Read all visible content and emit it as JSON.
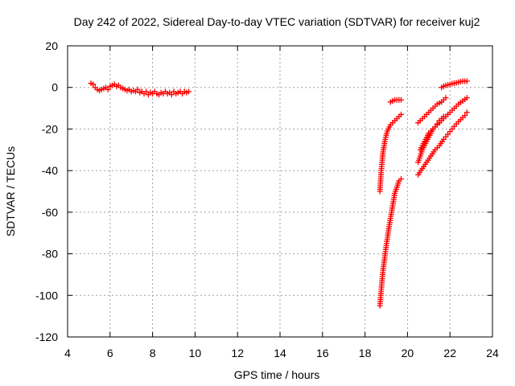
{
  "chart_data": {
    "type": "scatter",
    "title": "Day 242 of 2022, Sidereal Day-to-day VTEC variation (SDTVAR) for receiver kuj2",
    "xlabel": "GPS time / hours",
    "ylabel": "SDTVAR / TECUs",
    "xlim": [
      4,
      24
    ],
    "ylim": [
      -120,
      20
    ],
    "xticks": [
      "4",
      "6",
      "8",
      "10",
      "12",
      "14",
      "16",
      "18",
      "20",
      "22",
      "24"
    ],
    "yticks": [
      "20",
      "0",
      "-20",
      "-40",
      "-60",
      "-80",
      "-100",
      "-120"
    ],
    "grid": true,
    "marker": "plus",
    "color": "#ff0000",
    "series": [
      {
        "values": [
          [
            5.1,
            2
          ],
          [
            5.2,
            1.5
          ],
          [
            5.3,
            0
          ],
          [
            5.4,
            -1
          ],
          [
            5.5,
            -1.5
          ],
          [
            5.6,
            -1
          ],
          [
            5.7,
            -0.5
          ],
          [
            5.8,
            0
          ],
          [
            5.9,
            -1
          ],
          [
            6.0,
            0.5
          ],
          [
            6.1,
            1
          ],
          [
            6.2,
            1.5
          ],
          [
            6.3,
            0.5
          ],
          [
            6.4,
            1
          ],
          [
            6.5,
            0
          ],
          [
            6.6,
            -0.5
          ],
          [
            6.7,
            -1
          ],
          [
            6.8,
            -1.5
          ],
          [
            6.9,
            -1
          ],
          [
            7.0,
            -2
          ],
          [
            7.1,
            -1.5
          ],
          [
            7.2,
            -2
          ],
          [
            7.3,
            -1
          ],
          [
            7.4,
            -2.5
          ],
          [
            7.5,
            -2
          ],
          [
            7.6,
            -3
          ],
          [
            7.7,
            -2
          ],
          [
            7.8,
            -3.5
          ],
          [
            7.9,
            -2.5
          ],
          [
            8.0,
            -3
          ],
          [
            8.1,
            -2
          ],
          [
            8.2,
            -3
          ],
          [
            8.3,
            -3.5
          ],
          [
            8.4,
            -2.5
          ],
          [
            8.5,
            -3
          ],
          [
            8.6,
            -2
          ],
          [
            8.7,
            -3
          ],
          [
            8.8,
            -2.5
          ],
          [
            8.9,
            -3.5
          ],
          [
            9.0,
            -2
          ],
          [
            9.1,
            -3
          ],
          [
            9.2,
            -2.5
          ],
          [
            9.3,
            -2
          ],
          [
            9.4,
            -3
          ],
          [
            9.5,
            -2
          ],
          [
            9.6,
            -2.5
          ],
          [
            9.7,
            -2
          ]
        ]
      },
      {
        "values": [
          [
            18.7,
            -50
          ],
          [
            18.75,
            -42
          ],
          [
            18.8,
            -36
          ],
          [
            18.85,
            -31
          ],
          [
            18.9,
            -28
          ],
          [
            18.95,
            -25
          ],
          [
            19.0,
            -23
          ],
          [
            19.05,
            -21
          ],
          [
            19.1,
            -20
          ],
          [
            19.15,
            -19
          ],
          [
            19.2,
            -18
          ],
          [
            19.3,
            -17
          ],
          [
            19.4,
            -16
          ],
          [
            19.5,
            -15
          ],
          [
            19.6,
            -14
          ],
          [
            19.7,
            -13
          ]
        ]
      },
      {
        "values": [
          [
            19.2,
            -7
          ],
          [
            19.3,
            -6.5
          ],
          [
            19.4,
            -6
          ],
          [
            19.5,
            -6
          ],
          [
            19.6,
            -6
          ],
          [
            19.7,
            -6
          ]
        ]
      },
      {
        "values": [
          [
            18.7,
            -105
          ],
          [
            18.75,
            -99
          ],
          [
            18.8,
            -93
          ],
          [
            18.85,
            -88
          ],
          [
            18.9,
            -84
          ],
          [
            18.95,
            -80
          ],
          [
            19.0,
            -76
          ],
          [
            19.05,
            -73
          ],
          [
            19.1,
            -69
          ],
          [
            19.15,
            -66
          ],
          [
            19.2,
            -63
          ],
          [
            19.25,
            -60
          ],
          [
            19.3,
            -57
          ],
          [
            19.35,
            -54
          ],
          [
            19.4,
            -51
          ],
          [
            19.5,
            -48
          ],
          [
            19.6,
            -45
          ],
          [
            19.7,
            -44
          ]
        ]
      },
      {
        "values": [
          [
            20.5,
            -17
          ],
          [
            20.6,
            -16
          ],
          [
            20.7,
            -15
          ],
          [
            20.8,
            -14
          ],
          [
            20.9,
            -13
          ],
          [
            21.0,
            -12
          ],
          [
            21.1,
            -11
          ],
          [
            21.2,
            -10
          ],
          [
            21.3,
            -9
          ],
          [
            21.4,
            -8
          ],
          [
            21.5,
            -7.5
          ],
          [
            21.6,
            -7
          ],
          [
            21.7,
            -6
          ],
          [
            21.8,
            -5
          ]
        ]
      },
      {
        "values": [
          [
            20.5,
            -36
          ],
          [
            20.6,
            -33
          ],
          [
            20.7,
            -30
          ],
          [
            20.8,
            -28
          ],
          [
            20.9,
            -26
          ],
          [
            21.0,
            -24
          ],
          [
            21.1,
            -22
          ],
          [
            21.2,
            -20
          ],
          [
            21.3,
            -19
          ],
          [
            21.4,
            -17.5
          ],
          [
            21.5,
            -16
          ],
          [
            21.6,
            -15
          ],
          [
            21.7,
            -14
          ]
        ]
      },
      {
        "values": [
          [
            20.6,
            -30
          ],
          [
            20.7,
            -28
          ],
          [
            20.8,
            -26
          ],
          [
            20.9,
            -24
          ],
          [
            21.0,
            -22
          ],
          [
            21.2,
            -20
          ],
          [
            21.4,
            -18
          ],
          [
            21.6,
            -16
          ],
          [
            21.8,
            -14
          ],
          [
            22.0,
            -12
          ],
          [
            22.2,
            -10
          ],
          [
            22.4,
            -8
          ],
          [
            22.6,
            -6.5
          ],
          [
            22.8,
            -5
          ]
        ]
      },
      {
        "values": [
          [
            20.5,
            -42
          ],
          [
            20.7,
            -39
          ],
          [
            20.9,
            -36
          ],
          [
            21.1,
            -33
          ],
          [
            21.3,
            -30
          ],
          [
            21.5,
            -28
          ],
          [
            21.7,
            -25
          ],
          [
            21.9,
            -22.5
          ],
          [
            22.1,
            -20
          ],
          [
            22.3,
            -17.5
          ],
          [
            22.5,
            -15.5
          ],
          [
            22.7,
            -13.5
          ],
          [
            22.8,
            -12
          ]
        ]
      },
      {
        "values": [
          [
            21.6,
            0
          ],
          [
            21.7,
            0.5
          ],
          [
            21.8,
            1
          ],
          [
            21.9,
            1.2
          ],
          [
            22.0,
            1.5
          ],
          [
            22.1,
            1.8
          ],
          [
            22.2,
            2
          ],
          [
            22.3,
            2.2
          ],
          [
            22.4,
            2.5
          ],
          [
            22.5,
            2.8
          ],
          [
            22.6,
            3
          ],
          [
            22.7,
            3
          ],
          [
            22.8,
            3
          ]
        ]
      }
    ]
  }
}
